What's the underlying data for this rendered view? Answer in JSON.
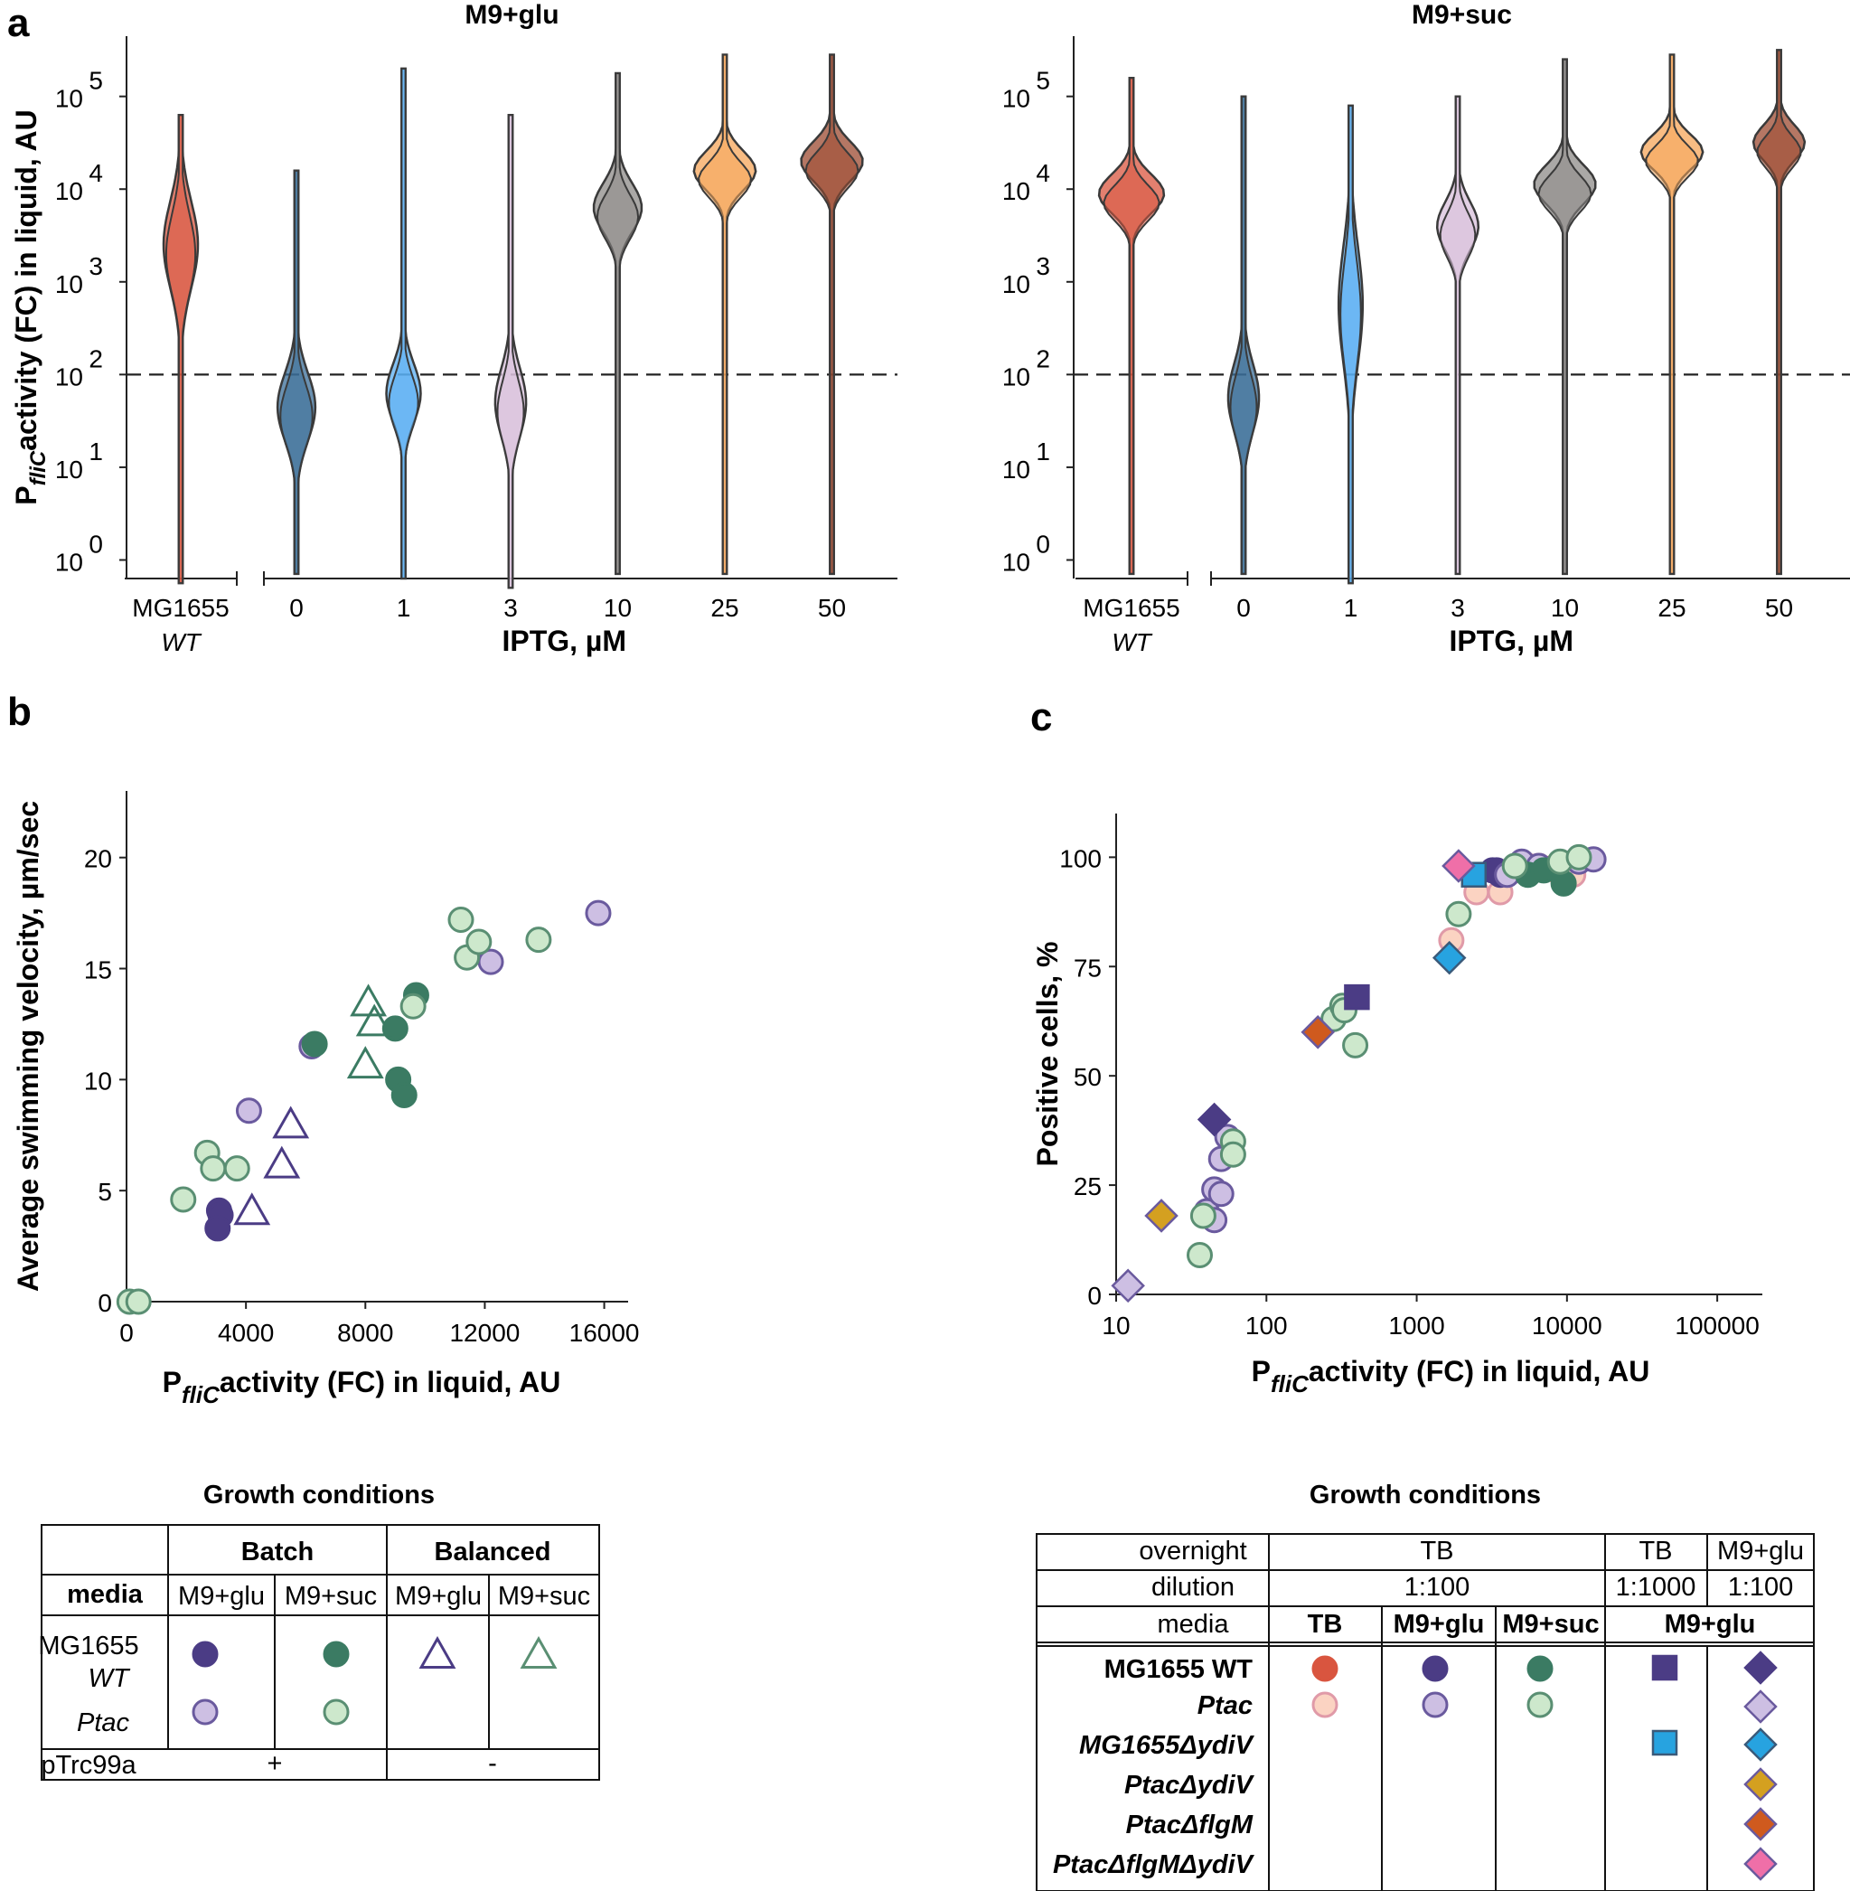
{
  "panels": {
    "a": "a",
    "b": "b",
    "c": "c"
  },
  "chart_data": [
    {
      "id": "a-left",
      "type": "violin",
      "title": "M9+glu",
      "ylabel": {
        "base": "P",
        "sub": "fliC",
        "rest": "activity (FC) in liquid, AU"
      },
      "xlabel": "IPTG, µM",
      "yscale": "log10",
      "ylim_log": [
        -0.2,
        5.65
      ],
      "ytick_bases": [
        "10",
        "10",
        "10",
        "10",
        "10",
        "10"
      ],
      "ytick_exps": [
        "0",
        "1",
        "2",
        "3",
        "4",
        "5"
      ],
      "threshold": 100,
      "wt_label": [
        "MG1655",
        "WT"
      ],
      "categories": [
        "0",
        "1",
        "3",
        "10",
        "25",
        "50"
      ],
      "violins": [
        {
          "label": "MG1655 WT",
          "color": "#d9553f",
          "median_log": 3.35,
          "spread": 0.45,
          "min_log": -0.25,
          "max_log": 4.8,
          "width": 0.5
        },
        {
          "label": "0",
          "color": "#3a6e98",
          "median_log": 1.6,
          "spread": 0.35,
          "min_log": -0.15,
          "max_log": 4.2,
          "width": 0.55
        },
        {
          "label": "1",
          "color": "#5aaef2",
          "median_log": 1.75,
          "spread": 0.3,
          "min_log": -0.2,
          "max_log": 5.3,
          "width": 0.5
        },
        {
          "label": "3",
          "color": "#d8c0db",
          "median_log": 1.65,
          "spread": 0.35,
          "min_log": -0.3,
          "max_log": 4.8,
          "width": 0.45
        },
        {
          "label": "10",
          "color": "#8e8b88",
          "median_log": 3.75,
          "spread": 0.25,
          "min_log": -0.15,
          "max_log": 5.25,
          "width": 0.7
        },
        {
          "label": "25",
          "color": "#f6a65a",
          "median_log": 4.15,
          "spread": 0.2,
          "min_log": -0.15,
          "max_log": 5.45,
          "width": 0.9
        },
        {
          "label": "50",
          "color": "#9c4a30",
          "median_log": 4.25,
          "spread": 0.2,
          "min_log": -0.15,
          "max_log": 5.45,
          "width": 0.9
        }
      ]
    },
    {
      "id": "a-right",
      "type": "violin",
      "title": "M9+suc",
      "xlabel": "IPTG, µM",
      "yscale": "log10",
      "ylim_log": [
        -0.2,
        5.65
      ],
      "ytick_bases": [
        "10",
        "10",
        "10",
        "10",
        "10",
        "10"
      ],
      "ytick_exps": [
        "0",
        "1",
        "2",
        "3",
        "4",
        "5"
      ],
      "threshold": 100,
      "wt_label": [
        "MG1655",
        "WT"
      ],
      "categories": [
        "0",
        "1",
        "3",
        "10",
        "25",
        "50"
      ],
      "violins": [
        {
          "label": "MG1655 WT",
          "color": "#d9553f",
          "median_log": 3.9,
          "spread": 0.2,
          "min_log": -0.15,
          "max_log": 5.2,
          "width": 0.95
        },
        {
          "label": "0",
          "color": "#3a6e98",
          "median_log": 1.7,
          "spread": 0.35,
          "min_log": -0.15,
          "max_log": 5.0,
          "width": 0.45
        },
        {
          "label": "1",
          "color": "#5aaef2",
          "median_log": 2.7,
          "spread": 0.6,
          "min_log": -0.25,
          "max_log": 4.9,
          "width": 0.35
        },
        {
          "label": "3",
          "color": "#d8c0db",
          "median_log": 3.55,
          "spread": 0.25,
          "min_log": -0.15,
          "max_log": 5.0,
          "width": 0.6
        },
        {
          "label": "10",
          "color": "#8e8b88",
          "median_log": 4.0,
          "spread": 0.2,
          "min_log": -0.15,
          "max_log": 5.4,
          "width": 0.9
        },
        {
          "label": "25",
          "color": "#f6a65a",
          "median_log": 4.35,
          "spread": 0.18,
          "min_log": -0.15,
          "max_log": 5.45,
          "width": 0.9
        },
        {
          "label": "50",
          "color": "#9c4a30",
          "median_log": 4.45,
          "spread": 0.18,
          "min_log": -0.15,
          "max_log": 5.5,
          "width": 0.75
        }
      ]
    },
    {
      "id": "b",
      "type": "scatter",
      "xlabel": {
        "base": "P",
        "sub": "fliC",
        "rest": "activity (FC) in liquid, AU"
      },
      "ylabel": "Average swimming velocity, µm/sec",
      "xlim": [
        0,
        16800
      ],
      "ylim": [
        0,
        23
      ],
      "xticks": [
        0,
        4000,
        8000,
        12000,
        16000
      ],
      "yticks": [
        0,
        5,
        10,
        15,
        20
      ],
      "series": [
        {
          "name": "MG1655 WT, Batch, M9+glu",
          "marker": "circle",
          "fill": "#4b3c85",
          "stroke": "#4b3c85",
          "points": [
            [
              3100,
              4.1
            ],
            [
              3150,
              3.9
            ],
            [
              3050,
              3.3
            ]
          ]
        },
        {
          "name": "Ptac, Batch, M9+glu",
          "marker": "circle",
          "fill": "#cdbfe3",
          "stroke": "#6a5a9e",
          "points": [
            [
              4100,
              8.6
            ],
            [
              6200,
              11.5
            ],
            [
              12200,
              15.3
            ],
            [
              15800,
              17.5
            ]
          ]
        },
        {
          "name": "MG1655 WT, Batch, M9+suc",
          "marker": "circle",
          "fill": "#3b7b63",
          "stroke": "#3b7b63",
          "points": [
            [
              6300,
              11.6
            ],
            [
              9000,
              12.3
            ],
            [
              9700,
              13.8
            ],
            [
              9100,
              10.0
            ],
            [
              9300,
              9.3
            ]
          ]
        },
        {
          "name": "Ptac, Batch, M9+suc",
          "marker": "circle",
          "fill": "#cde8cc",
          "stroke": "#5a8f73",
          "points": [
            [
              100,
              0
            ],
            [
              400,
              0
            ],
            [
              1900,
              4.6
            ],
            [
              2700,
              6.7
            ],
            [
              2900,
              6.0
            ],
            [
              3700,
              6.0
            ],
            [
              9600,
              13.3
            ],
            [
              11200,
              17.2
            ],
            [
              11400,
              15.5
            ],
            [
              11800,
              16.2
            ],
            [
              13800,
              16.3
            ]
          ]
        },
        {
          "name": "MG1655 WT, Balanced, M9+glu",
          "marker": "triangle",
          "fill": "none",
          "stroke": "#4b3c85",
          "points": [
            [
              4200,
              4.1
            ],
            [
              5200,
              6.2
            ],
            [
              5500,
              8.0
            ]
          ]
        },
        {
          "name": "MG1655 WT, Balanced, M9+suc",
          "marker": "triangle",
          "fill": "none",
          "stroke": "#3b7b63",
          "points": [
            [
              8000,
              10.7
            ],
            [
              8100,
              13.5
            ],
            [
              8300,
              12.6
            ]
          ]
        }
      ]
    },
    {
      "id": "c",
      "type": "scatter",
      "xscale": "log10",
      "xlabel": {
        "base": "P",
        "sub": "fliC",
        "rest": "activity (FC) in liquid, AU"
      },
      "ylabel": "Positive cells, %",
      "xlim_log": [
        1.0,
        5.3
      ],
      "ylim": [
        0,
        110
      ],
      "xticks": [
        10,
        100,
        1000,
        10000,
        100000
      ],
      "xtick_labels": [
        "10",
        "100",
        "1000",
        "10000",
        "100000"
      ],
      "yticks": [
        0,
        25,
        50,
        75,
        100
      ],
      "series": [
        {
          "name": "MG1655 WT, TB",
          "marker": "circle",
          "fill": "#d9553f",
          "stroke": "#d9553f",
          "points": [
            [
              8000,
              97.5
            ],
            [
              9000,
              98
            ],
            [
              8500,
              97
            ]
          ]
        },
        {
          "name": "Ptac, TB",
          "marker": "circle",
          "fill": "#fbd3c2",
          "stroke": "#e09aa8",
          "points": [
            [
              1700,
              81
            ],
            [
              2500,
              92
            ],
            [
              3600,
              92
            ],
            [
              4500,
              97
            ],
            [
              5500,
              98
            ],
            [
              6500,
              98
            ],
            [
              11000,
              96
            ]
          ]
        },
        {
          "name": "MG1655 WT, M9+glu",
          "marker": "circle",
          "fill": "#4b3c85",
          "stroke": "#4b3c85",
          "points": [
            [
              3200,
              97
            ],
            [
              3600,
              96
            ],
            [
              3400,
              97
            ]
          ]
        },
        {
          "name": "Ptac, M9+glu",
          "marker": "circle",
          "fill": "#cdbfe3",
          "stroke": "#6a5a9e",
          "points": [
            [
              45,
              24
            ],
            [
              40,
              19
            ],
            [
              45,
              17
            ],
            [
              50,
              23
            ],
            [
              55,
              36
            ],
            [
              50,
              31
            ],
            [
              4000,
              96
            ],
            [
              5000,
              99
            ],
            [
              12000,
              99
            ],
            [
              15000,
              99.5
            ],
            [
              6500,
              98
            ]
          ]
        },
        {
          "name": "MG1655 WT, M9+suc",
          "marker": "circle",
          "fill": "#3b7b63",
          "stroke": "#3b7b63",
          "points": [
            [
              5500,
              96
            ],
            [
              7000,
              97
            ],
            [
              9500,
              94
            ]
          ]
        },
        {
          "name": "Ptac, M9+suc",
          "marker": "circle",
          "fill": "#cde8cc",
          "stroke": "#5a8f73",
          "points": [
            [
              36,
              9
            ],
            [
              38,
              18
            ],
            [
              60,
              35
            ],
            [
              60,
              32
            ],
            [
              280,
              63
            ],
            [
              320,
              66
            ],
            [
              330,
              65
            ],
            [
              390,
              57
            ],
            [
              1900,
              87
            ],
            [
              4500,
              98
            ],
            [
              9000,
              99
            ],
            [
              12000,
              100
            ]
          ]
        },
        {
          "name": "MG1655 WT, TB 1:1000",
          "marker": "square",
          "fill": "#4b3c85",
          "stroke": "#4b3c85",
          "points": [
            [
              400,
              68
            ]
          ]
        },
        {
          "name": "MG1655ΔydiV, TB 1:1000",
          "marker": "square",
          "fill": "#27a3e0",
          "stroke": "#3a5a7a",
          "points": [
            [
              2400,
              96
            ]
          ]
        },
        {
          "name": "MG1655 WT, M9+glu 1:100 overnight",
          "marker": "diamond",
          "fill": "#4b3c85",
          "stroke": "#4b3c85",
          "points": [
            [
              45,
              40
            ]
          ]
        },
        {
          "name": "Ptac, M9+glu 1:100 overnight",
          "marker": "diamond",
          "fill": "#cdbfe3",
          "stroke": "#6a5a9e",
          "points": [
            [
              12,
              2
            ]
          ]
        },
        {
          "name": "MG1655ΔydiV, M9+glu",
          "marker": "diamond",
          "fill": "#27a3e0",
          "stroke": "#3a5a7a",
          "points": [
            [
              1650,
              77
            ]
          ]
        },
        {
          "name": "PtacΔydiV, M9+glu",
          "marker": "diamond",
          "fill": "#d4a020",
          "stroke": "#6a5a9e",
          "points": [
            [
              20,
              18
            ]
          ]
        },
        {
          "name": "PtacΔflgM, M9+glu",
          "marker": "diamond",
          "fill": "#cf5a1e",
          "stroke": "#6a5a9e",
          "points": [
            [
              220,
              60
            ]
          ]
        },
        {
          "name": "PtacΔflgMΔydiV, M9+glu",
          "marker": "diamond",
          "fill": "#ef6fa8",
          "stroke": "#6a5a9e",
          "points": [
            [
              1900,
              98
            ]
          ]
        }
      ]
    }
  ],
  "legend_b": {
    "title": "Growth conditions",
    "batch": "Batch",
    "balanced": "Balanced",
    "media": "media",
    "cols": [
      "M9+glu",
      "M9+suc",
      "M9+glu",
      "M9+suc"
    ],
    "row_wt": [
      "MG1655",
      "WT"
    ],
    "row_ptac": "Ptac",
    "plasmid": "pTrc99a",
    "plus": "+",
    "minus": "-"
  },
  "legend_c": {
    "title": "Growth conditions",
    "overnight": "overnight",
    "dilution": "dilution",
    "media": "media",
    "tb": "TB",
    "tb2": "TB",
    "m9glu_overnight": "M9+glu",
    "dil_1": "1:100",
    "dil_2": "1:1000",
    "dil_3": "1:100",
    "media_cols": [
      "TB",
      "M9+glu",
      "M9+suc",
      "M9+glu"
    ],
    "rows": [
      "MG1655 WT",
      "Ptac",
      "MG1655ΔydiV",
      "PtacΔydiV",
      "PtacΔflgM",
      "PtacΔflgMΔydiV"
    ]
  }
}
